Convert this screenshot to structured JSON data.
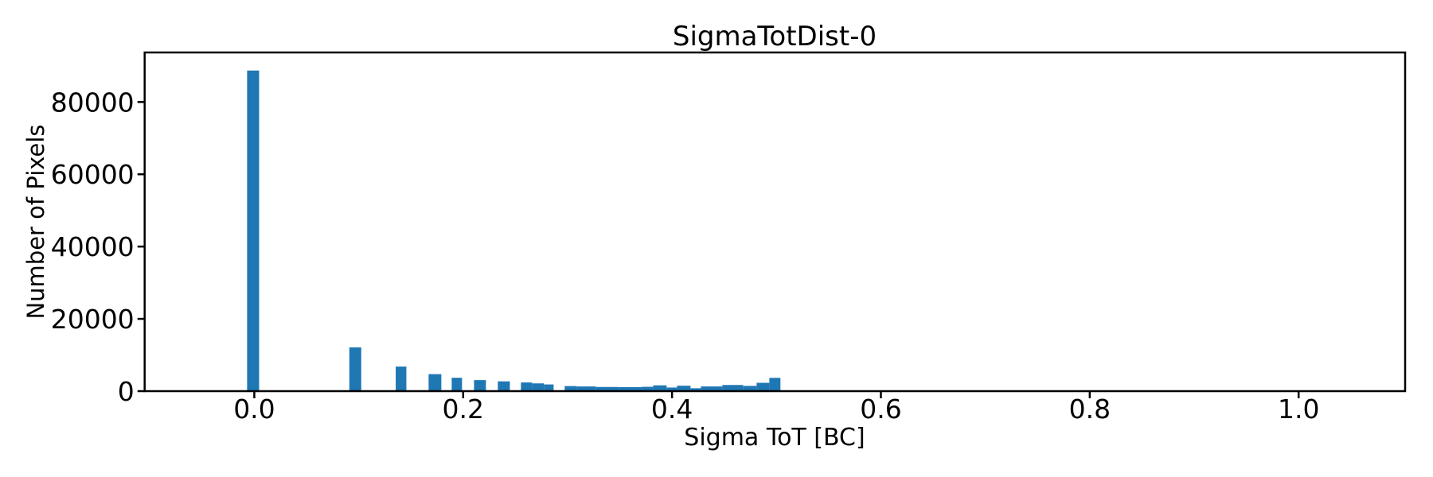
{
  "chart_data": {
    "type": "bar",
    "title": "SigmaTotDist-0",
    "xlabel": "Sigma ToT [BC]",
    "ylabel": "Number of Pixels",
    "xlim": [
      -0.105,
      1.102
    ],
    "ylim": [
      0,
      93700
    ],
    "grid": false,
    "legend_position": "none",
    "bar_color": "#1f77b4",
    "axis_color": "#000000",
    "background_color": "#ffffff",
    "xticks": [
      {
        "value": 0.0,
        "label": "0.0"
      },
      {
        "value": 0.2,
        "label": "0.2"
      },
      {
        "value": 0.4,
        "label": "0.4"
      },
      {
        "value": 0.6,
        "label": "0.6"
      },
      {
        "value": 0.8,
        "label": "0.8"
      },
      {
        "value": 1.0,
        "label": "1.0"
      }
    ],
    "yticks": [
      {
        "value": 0,
        "label": "0"
      },
      {
        "value": 20000,
        "label": "20000"
      },
      {
        "value": 40000,
        "label": "40000"
      },
      {
        "value": 60000,
        "label": "60000"
      },
      {
        "value": 80000,
        "label": "80000"
      }
    ],
    "bars": [
      {
        "x0": -0.0069,
        "x1": 0.0046,
        "count": 88700
      },
      {
        "x0": 0.091,
        "x1": 0.1024,
        "count": 12100
      },
      {
        "x0": 0.1354,
        "x1": 0.1456,
        "count": 6800
      },
      {
        "x0": 0.1669,
        "x1": 0.1791,
        "count": 4700
      },
      {
        "x0": 0.189,
        "x1": 0.1989,
        "count": 3700
      },
      {
        "x0": 0.2104,
        "x1": 0.2218,
        "count": 3050
      },
      {
        "x0": 0.2332,
        "x1": 0.2447,
        "count": 2700
      },
      {
        "x0": 0.2553,
        "x1": 0.266,
        "count": 2400
      },
      {
        "x0": 0.266,
        "x1": 0.2774,
        "count": 2150
      },
      {
        "x0": 0.2774,
        "x1": 0.2866,
        "count": 1850
      },
      {
        "x0": 0.2972,
        "x1": 0.3087,
        "count": 1400
      },
      {
        "x0": 0.3087,
        "x1": 0.327,
        "count": 1300
      },
      {
        "x0": 0.327,
        "x1": 0.3491,
        "count": 1150
      },
      {
        "x0": 0.3491,
        "x1": 0.3712,
        "count": 1100
      },
      {
        "x0": 0.3712,
        "x1": 0.3819,
        "count": 1200
      },
      {
        "x0": 0.3819,
        "x1": 0.3948,
        "count": 1600
      },
      {
        "x0": 0.3948,
        "x1": 0.4047,
        "count": 1000
      },
      {
        "x0": 0.4047,
        "x1": 0.4177,
        "count": 1500
      },
      {
        "x0": 0.4177,
        "x1": 0.4276,
        "count": 800
      },
      {
        "x0": 0.4276,
        "x1": 0.4482,
        "count": 1300
      },
      {
        "x0": 0.4482,
        "x1": 0.468,
        "count": 1700
      },
      {
        "x0": 0.468,
        "x1": 0.481,
        "count": 1450
      },
      {
        "x0": 0.481,
        "x1": 0.4932,
        "count": 2300
      },
      {
        "x0": 0.4932,
        "x1": 0.5038,
        "count": 3670
      }
    ]
  }
}
